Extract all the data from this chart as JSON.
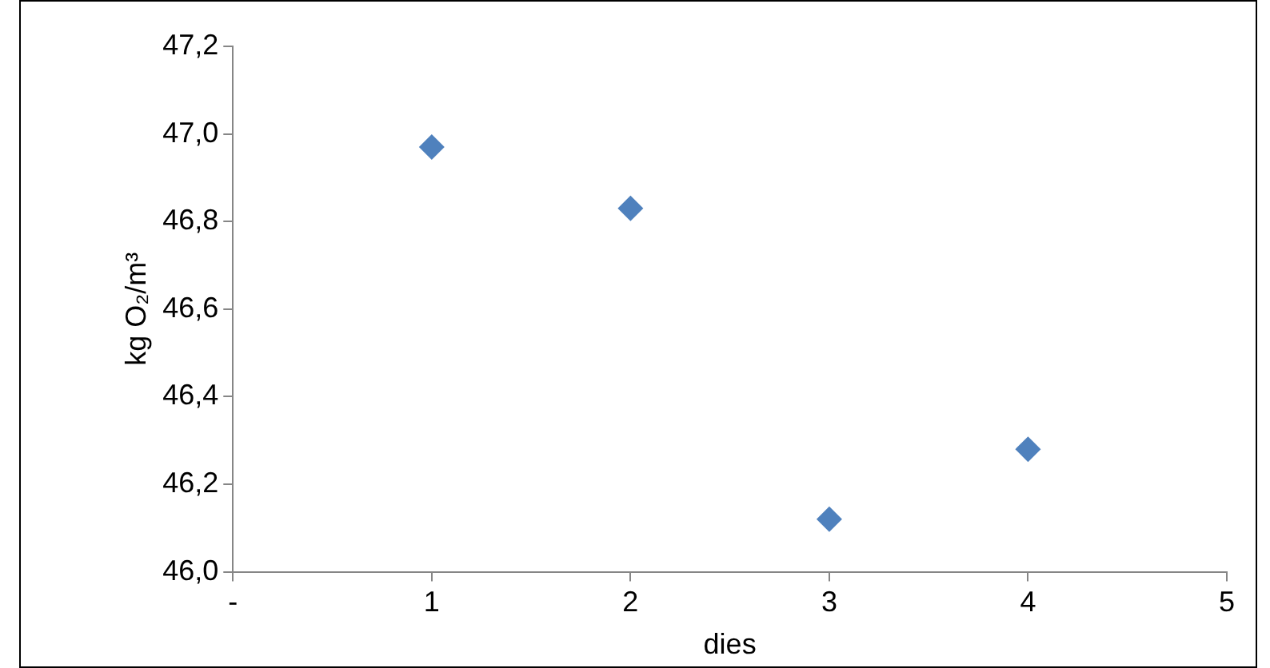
{
  "chart_data": {
    "type": "scatter",
    "xlabel": "dies",
    "ylabel": "kg O₂/m³",
    "x": [
      1,
      2,
      3,
      4
    ],
    "series": [
      {
        "color": "#4f81bd",
        "values": [
          46.97,
          46.83,
          46.12,
          46.28
        ]
      }
    ],
    "xlim": [
      0,
      5
    ],
    "xticks": [
      {
        "value": 0,
        "label": "-"
      },
      1,
      2,
      3,
      4,
      5
    ],
    "ylim": [
      46.0,
      47.2
    ],
    "yticks": [
      {
        "value": 46.0,
        "label": "46,0"
      },
      {
        "value": 46.2,
        "label": "46,2"
      },
      {
        "value": 46.4,
        "label": "46,4"
      },
      {
        "value": 46.6,
        "label": "46,6"
      },
      {
        "value": 46.8,
        "label": "46,8"
      },
      {
        "value": 47.0,
        "label": "47,0"
      },
      {
        "value": 47.2,
        "label": "47,2"
      }
    ],
    "grid": false,
    "legend": false,
    "marker": "diamond"
  }
}
